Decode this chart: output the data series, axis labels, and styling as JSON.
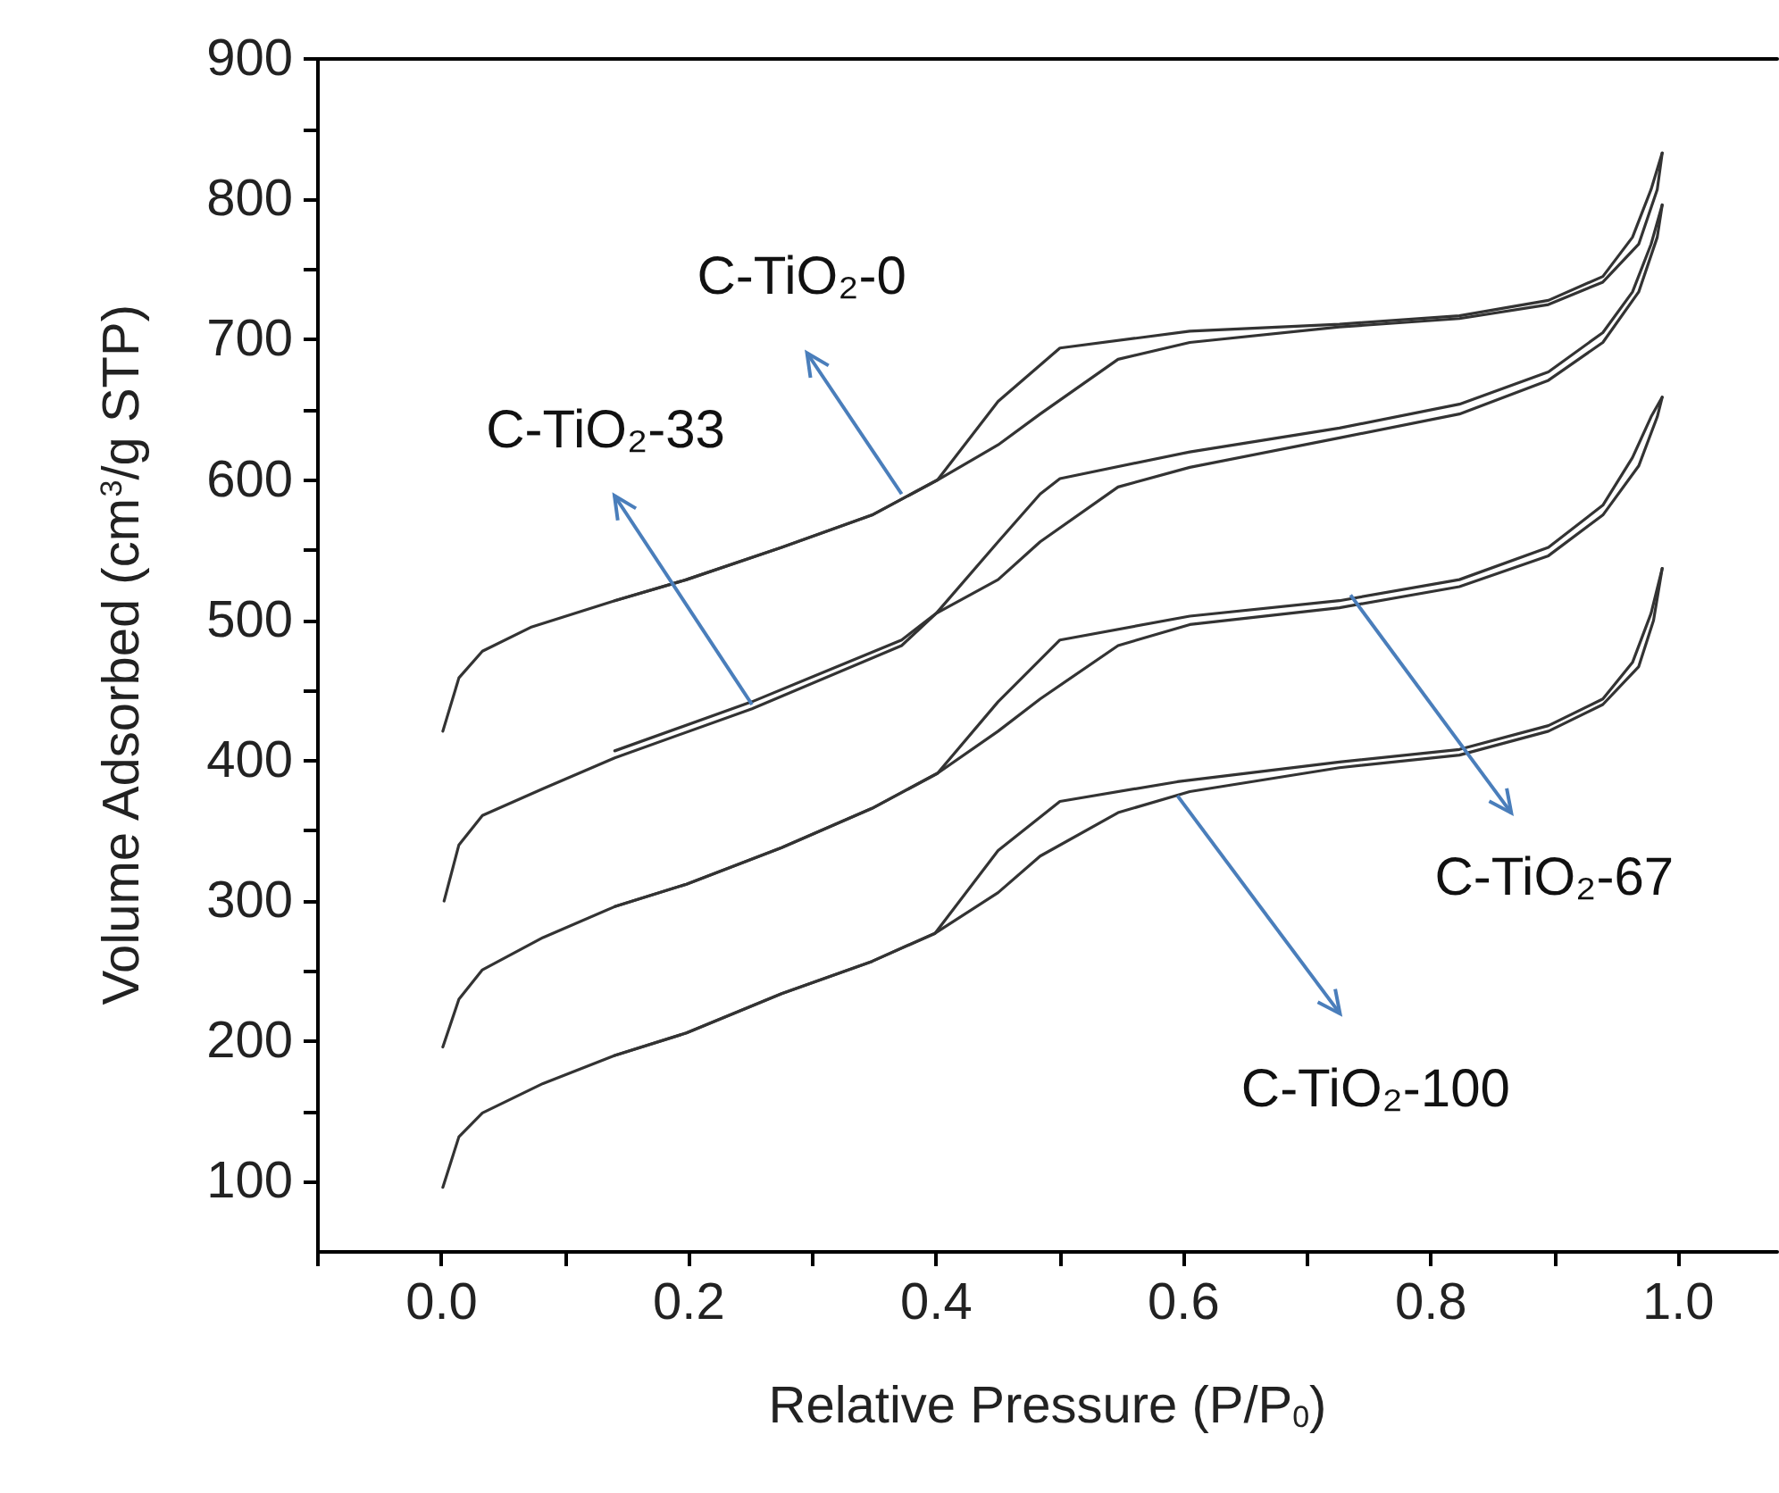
{
  "chart_data": {
    "type": "line",
    "xlabel": "Relative Pressure (P/P$_{0}$)",
    "ylabel": "Volume Adsorbed (cm$^{3}$/g STP)",
    "xlim": [
      -0.1,
      1.08
    ],
    "ylim": [
      50,
      900
    ],
    "xticks": [
      {
        "value": -0.1,
        "label": null
      },
      {
        "value": 0,
        "label": "0.0"
      },
      {
        "value": 0.1,
        "label": null
      },
      {
        "value": 0.2,
        "label": "0.2"
      },
      {
        "value": 0.3,
        "label": null
      },
      {
        "value": 0.4,
        "label": "0.4"
      },
      {
        "value": 0.5,
        "label": null
      },
      {
        "value": 0.6,
        "label": "0.6"
      },
      {
        "value": 0.7,
        "label": null
      },
      {
        "value": 0.8,
        "label": "0.8"
      },
      {
        "value": 0.9,
        "label": null
      },
      {
        "value": 1,
        "label": "1.0"
      }
    ],
    "yticks": [
      100,
      {
        "value": 150,
        "label": null
      },
      200,
      {
        "value": 250,
        "label": null
      },
      300,
      {
        "value": 350,
        "label": null
      },
      400,
      {
        "value": 450,
        "label": null
      },
      500,
      {
        "value": 550,
        "label": null
      },
      600,
      {
        "value": 650,
        "label": null
      },
      700,
      {
        "value": 750,
        "label": null
      },
      800,
      {
        "value": 850,
        "label": null
      },
      900
    ],
    "grid": false,
    "marker": "none",
    "line_style": "solid",
    "series": [
      {
        "color": "#333333",
        "x": [
          0.001,
          0.014,
          0.033,
          0.072,
          0.14,
          0.198,
          0.275,
          0.348,
          0.401,
          0.45,
          0.484,
          0.547,
          0.605,
          0.726,
          0.823,
          0.895,
          0.939,
          0.968,
          0.983,
          0.987
        ],
        "values": [
          421,
          459,
          478,
          495,
          514,
          529,
          552,
          575,
          600,
          625,
          647,
          686,
          698,
          709,
          715,
          725,
          741,
          768,
          807,
          833
        ]
      },
      {
        "color": "#333333",
        "x": [
          0.14,
          0.198,
          0.275,
          0.348,
          0.401,
          0.45,
          0.5,
          0.605,
          0.726,
          0.823,
          0.895,
          0.939,
          0.963,
          0.978,
          0.987
        ],
        "values": [
          514,
          529,
          552,
          575,
          600,
          656,
          694,
          706,
          711,
          717,
          728,
          745,
          773,
          807,
          833
        ]
      },
      {
        "color": "#333333",
        "x": [
          0.002,
          0.014,
          0.033,
          0.082,
          0.14,
          0.251,
          0.372,
          0.4,
          0.45,
          0.484,
          0.547,
          0.605,
          0.726,
          0.823,
          0.895,
          0.939,
          0.968,
          0.983,
          0.987
        ],
        "values": [
          300,
          340,
          361,
          380,
          402,
          437,
          482,
          505,
          529,
          556,
          595,
          609,
          630,
          647,
          671,
          698,
          734,
          773,
          796
        ]
      },
      {
        "color": "#333333",
        "x": [
          0.14,
          0.251,
          0.372,
          0.4,
          0.45,
          0.484,
          0.5,
          0.605,
          0.726,
          0.823,
          0.895,
          0.939,
          0.963,
          0.978,
          0.987
        ],
        "values": [
          407,
          442,
          486,
          505,
          556,
          590,
          601,
          620,
          637,
          654,
          677,
          705,
          734,
          768,
          796
        ]
      },
      {
        "color": "#333333",
        "x": [
          0.001,
          0.014,
          0.033,
          0.082,
          0.14,
          0.198,
          0.275,
          0.348,
          0.401,
          0.45,
          0.484,
          0.547,
          0.605,
          0.726,
          0.823,
          0.895,
          0.939,
          0.968,
          0.983,
          0.987
        ],
        "values": [
          196,
          230,
          251,
          274,
          296,
          312,
          338,
          366,
          391,
          421,
          444,
          482,
          497,
          509,
          524,
          546,
          575,
          610,
          645,
          659
        ]
      },
      {
        "color": "#333333",
        "x": [
          0.14,
          0.198,
          0.275,
          0.348,
          0.401,
          0.45,
          0.5,
          0.605,
          0.726,
          0.823,
          0.895,
          0.939,
          0.963,
          0.978,
          0.987
        ],
        "values": [
          296,
          312,
          338,
          366,
          391,
          442,
          486,
          503,
          514,
          529,
          552,
          582,
          616,
          645,
          659
        ]
      },
      {
        "color": "#333333",
        "x": [
          0.001,
          0.014,
          0.033,
          0.082,
          0.14,
          0.198,
          0.275,
          0.348,
          0.399,
          0.45,
          0.484,
          0.547,
          0.605,
          0.726,
          0.823,
          0.895,
          0.939,
          0.968,
          0.98,
          0.987
        ],
        "values": [
          96,
          132,
          149,
          170,
          190,
          206,
          234,
          257,
          277,
          306,
          332,
          363,
          378,
          395,
          404,
          421,
          440,
          467,
          500,
          537
        ]
      },
      {
        "color": "#333333",
        "x": [
          0.14,
          0.198,
          0.275,
          0.348,
          0.399,
          0.45,
          0.5,
          0.595,
          0.726,
          0.823,
          0.895,
          0.939,
          0.963,
          0.978,
          0.987
        ],
        "values": [
          190,
          206,
          234,
          257,
          277,
          336,
          371,
          385,
          399,
          408,
          425,
          444,
          470,
          505,
          537
        ]
      }
    ],
    "annotations": [
      {
        "text": "C-TiO₂-0",
        "x": 0.372,
        "y": 590
      },
      {
        "text": "C-TiO₂-33",
        "x": 0.251,
        "y": 440
      },
      {
        "text": "C-TiO₂-67",
        "x": 0.735,
        "y": 518
      },
      {
        "text": "C-TiO₂-100",
        "x": 0.595,
        "y": 375
      }
    ]
  }
}
